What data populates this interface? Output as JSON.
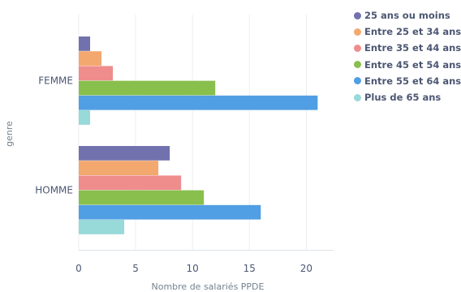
{
  "chart_data": {
    "type": "bar",
    "orientation": "horizontal",
    "categories": [
      "FEMME",
      "HOMME"
    ],
    "series": [
      {
        "name": "25 ans ou moins",
        "color": "#7172ad",
        "values": [
          1,
          8
        ]
      },
      {
        "name": "Entre 25 et 34 ans",
        "color": "#f2a86f",
        "values": [
          2,
          7
        ]
      },
      {
        "name": "Entre 35 et 44 ans",
        "color": "#ef8c8c",
        "values": [
          3,
          9
        ]
      },
      {
        "name": "Entre 45 et 54 ans",
        "color": "#88bf4d",
        "values": [
          12,
          11
        ]
      },
      {
        "name": "Entre 55 et 64 ans",
        "color": "#509ee3",
        "values": [
          21,
          16
        ]
      },
      {
        "name": "Plus de 65 ans",
        "color": "#98d9d9",
        "values": [
          1,
          4
        ]
      }
    ],
    "xlabel": "Nombre de salariés PPDE",
    "ylabel": "genre",
    "xlim": [
      0,
      22.4
    ],
    "xticks": [
      0,
      5,
      10,
      15,
      20
    ],
    "grid": true,
    "legend_position": "right"
  }
}
